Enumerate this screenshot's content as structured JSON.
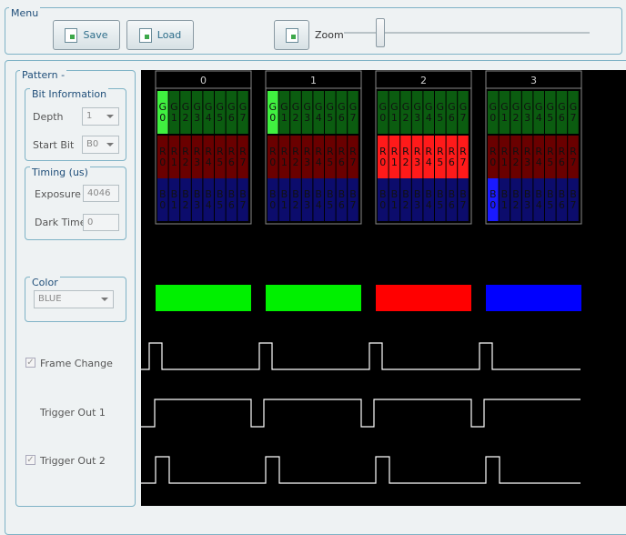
{
  "menu": {
    "title": "Menu",
    "save": "Save",
    "load": "Load",
    "zoom": "Zoom"
  },
  "pattern": {
    "title": "Pattern -",
    "bit_information": {
      "title": "Bit Information",
      "depth_label": "Depth",
      "depth": "1",
      "start_bit_label": "Start Bit",
      "start_bit": "B0"
    },
    "timing": {
      "title": "Timing (us)",
      "exposure_label": "Exposure",
      "exposure": "4046",
      "dark_time_label": "Dark Time",
      "dark_time": "0"
    },
    "color": {
      "title": "Color",
      "value": "BLUE"
    },
    "frame_change": "Frame Change",
    "trigger_out_1": "Trigger Out 1",
    "trigger_out_2": "Trigger Out 2"
  },
  "channels": [
    "G",
    "R",
    "B"
  ],
  "bits": [
    "0",
    "1",
    "2",
    "3",
    "4",
    "5",
    "6",
    "7"
  ],
  "patterns": [
    {
      "label": "0",
      "color": "#00f000",
      "active_channel": 0,
      "active_bits": [
        0
      ]
    },
    {
      "label": "1",
      "color": "#00f000",
      "active_channel": 0,
      "active_bits": [
        0
      ]
    },
    {
      "label": "2",
      "color": "#ff0000",
      "active_channel": 1,
      "active_bits": [
        0,
        1,
        2,
        3,
        4,
        5,
        6,
        7
      ]
    },
    {
      "label": "3",
      "color": "#0000ff",
      "active_channel": 2,
      "active_bits": [
        0
      ]
    }
  ]
}
